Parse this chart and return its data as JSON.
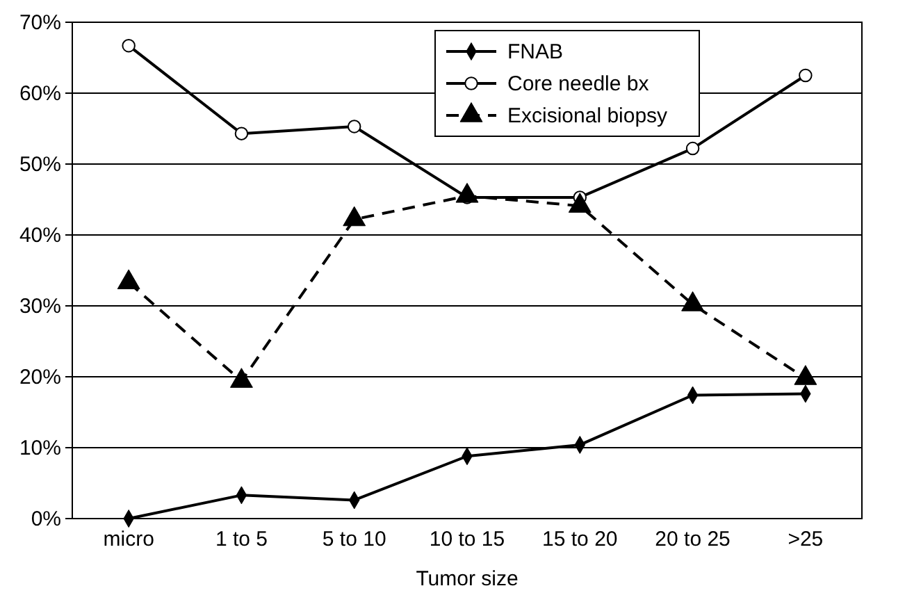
{
  "chart_data": {
    "type": "line",
    "xlabel": "Tumor size",
    "categories": [
      "micro",
      "1 to 5",
      "5 to 10",
      "10 to 15",
      "15 to 20",
      "20 to 25",
      ">25"
    ],
    "ylim": [
      0,
      70
    ],
    "yticks": [
      {
        "value": 0,
        "label": "0%"
      },
      {
        "value": 10,
        "label": "10%"
      },
      {
        "value": 20,
        "label": "20%"
      },
      {
        "value": 30,
        "label": "30%"
      },
      {
        "value": 40,
        "label": "40%"
      },
      {
        "value": 50,
        "label": "50%"
      },
      {
        "value": 60,
        "label": "60%"
      },
      {
        "value": 70,
        "label": "70%"
      }
    ],
    "grid": "y",
    "legend": "top right",
    "series": [
      {
        "name": "FNAB",
        "color": "#000000",
        "marker": "diamond",
        "line_style": "solid",
        "values": [
          0,
          3.3,
          2.6,
          8.8,
          10.4,
          17.4,
          17.6
        ]
      },
      {
        "name": "Core needle bx",
        "color": "#000000",
        "marker": "circle",
        "line_style": "solid",
        "values": [
          66.7,
          54.3,
          55.3,
          45.3,
          45.3,
          52.2,
          62.5
        ]
      },
      {
        "name": "Excisional biopsy",
        "color": "#000000",
        "marker": "triangle",
        "line_style": "dashed",
        "values": [
          33.3,
          19.4,
          42.2,
          45.5,
          44.1,
          30.2,
          19.8
        ]
      }
    ]
  }
}
